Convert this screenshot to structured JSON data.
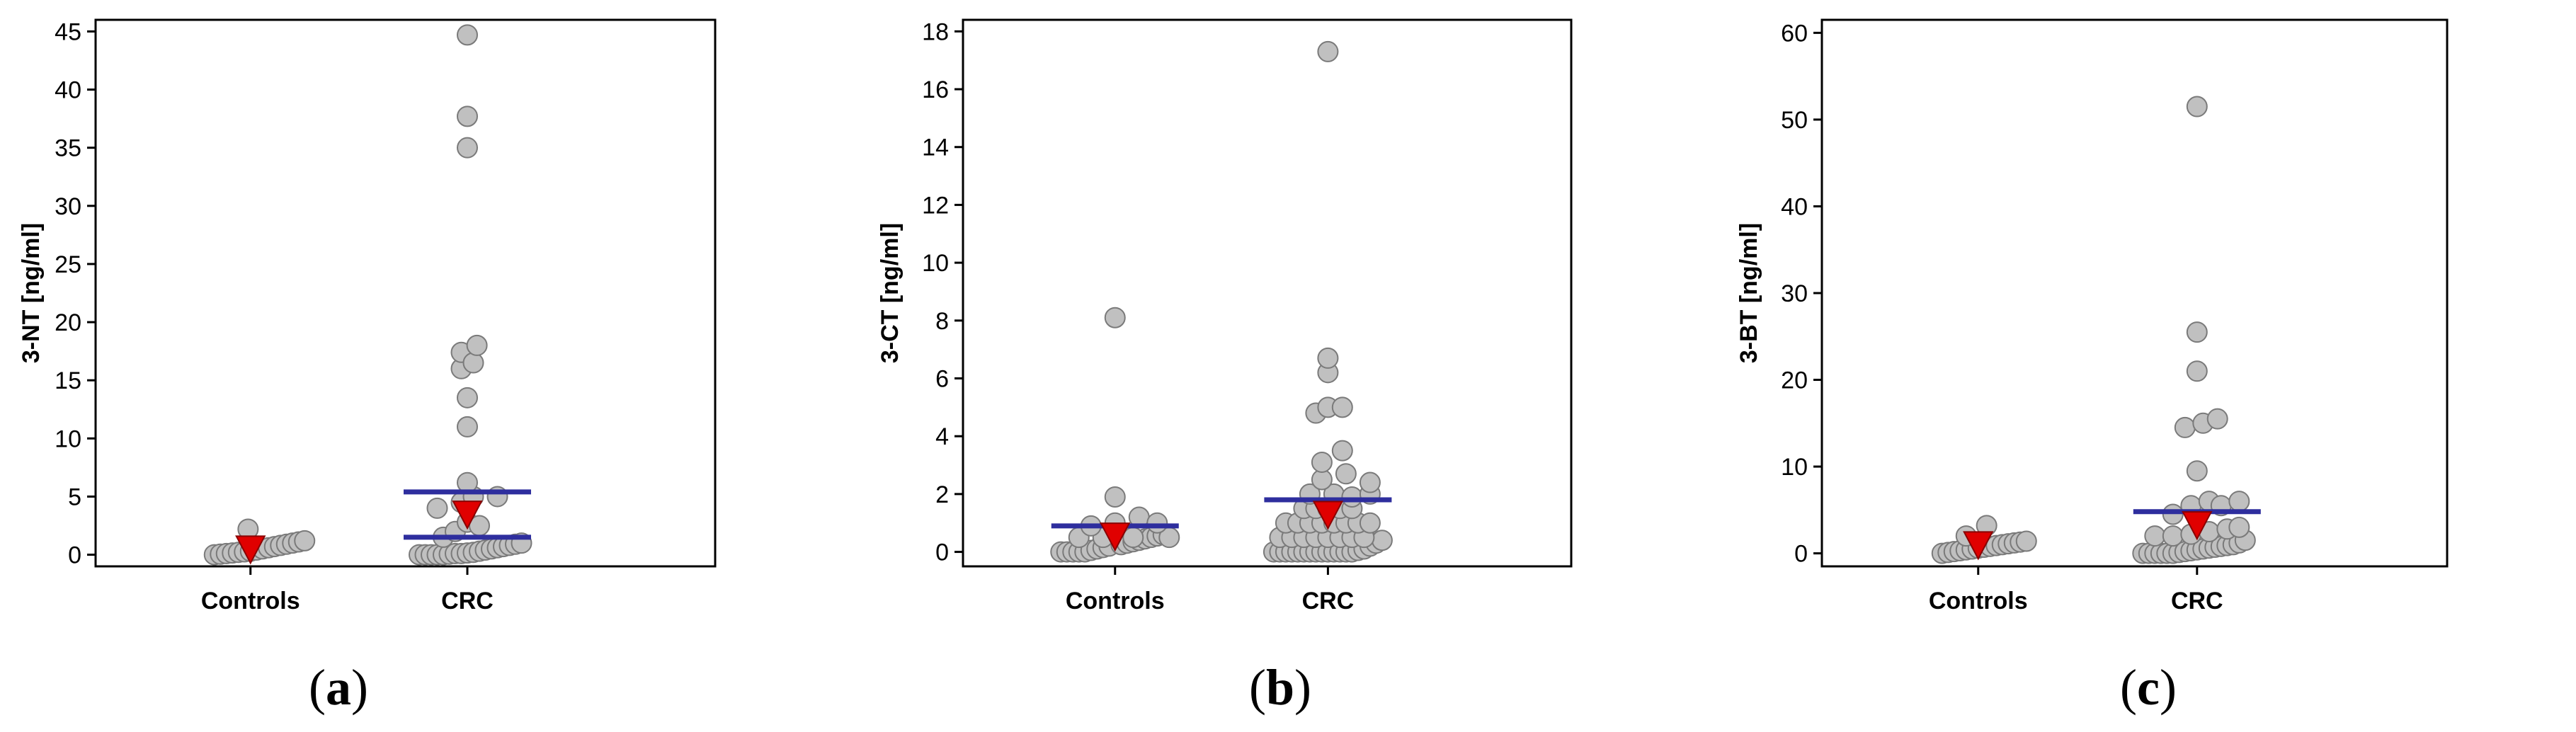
{
  "colors": {
    "point_fill": "#c0c0c0",
    "point_stroke": "#7a7a7a",
    "marker": "#e00000",
    "bar": "#2e2e9e",
    "axis": "#000000"
  },
  "captions": {
    "a": "a",
    "b": "b",
    "c": "c"
  },
  "chart_data": [
    {
      "type": "scatter",
      "id": "a",
      "ylabel": "3-NT [ng/ml]",
      "categories": [
        "Controls",
        "CRC"
      ],
      "ylim": [
        -1,
        46
      ],
      "yticks": [
        0,
        5,
        10,
        15,
        20,
        25,
        30,
        35,
        40,
        45
      ],
      "series": [
        {
          "name": "Controls",
          "cat": 0,
          "points": [
            [
              -0.3,
              0
            ],
            [
              -0.25,
              0.05
            ],
            [
              -0.2,
              0.1
            ],
            [
              -0.15,
              0.15
            ],
            [
              -0.1,
              0.2
            ],
            [
              -0.05,
              0.25
            ],
            [
              0.0,
              0.3
            ],
            [
              0.05,
              0.4
            ],
            [
              0.1,
              0.5
            ],
            [
              0.15,
              0.6
            ],
            [
              0.2,
              0.7
            ],
            [
              0.25,
              0.8
            ],
            [
              0.3,
              0.9
            ],
            [
              0.35,
              1.0
            ],
            [
              0.4,
              1.1
            ],
            [
              0.45,
              1.2
            ],
            [
              -0.02,
              2.2
            ]
          ]
        },
        {
          "name": "CRC",
          "cat": 1,
          "points": [
            [
              -0.4,
              0
            ],
            [
              -0.35,
              0
            ],
            [
              -0.3,
              0
            ],
            [
              -0.25,
              0
            ],
            [
              -0.2,
              0
            ],
            [
              -0.15,
              0.05
            ],
            [
              -0.1,
              0.1
            ],
            [
              -0.05,
              0.1
            ],
            [
              0.0,
              0.15
            ],
            [
              0.05,
              0.2
            ],
            [
              0.1,
              0.3
            ],
            [
              0.15,
              0.4
            ],
            [
              0.2,
              0.5
            ],
            [
              0.25,
              0.6
            ],
            [
              0.3,
              0.7
            ],
            [
              0.35,
              0.8
            ],
            [
              0.4,
              0.9
            ],
            [
              0.45,
              1.0
            ],
            [
              -0.2,
              1.5
            ],
            [
              -0.1,
              2.0
            ],
            [
              0.0,
              2.8
            ],
            [
              0.1,
              2.5
            ],
            [
              -0.25,
              4.0
            ],
            [
              -0.05,
              4.5
            ],
            [
              0.05,
              5.0
            ],
            [
              0.25,
              5.0
            ],
            [
              0.0,
              6.2
            ],
            [
              0.0,
              11.0
            ],
            [
              0.0,
              13.5
            ],
            [
              -0.05,
              16.0
            ],
            [
              -0.05,
              17.4
            ],
            [
              0.05,
              16.5
            ],
            [
              0.08,
              18.0
            ],
            [
              0.0,
              35.0
            ],
            [
              0.0,
              37.7
            ],
            [
              0.0,
              44.7
            ]
          ]
        }
      ],
      "median": [
        0.5,
        3.5
      ],
      "ci_bars": [
        {
          "cat": 1,
          "y": 5.4
        },
        {
          "cat": 1,
          "y": 1.5
        }
      ]
    },
    {
      "type": "scatter",
      "id": "b",
      "ylabel": "3-CT [ng/ml]",
      "categories": [
        "Controls",
        "CRC"
      ],
      "ylim": [
        -0.5,
        18.4
      ],
      "yticks": [
        0,
        2,
        4,
        6,
        8,
        10,
        12,
        14,
        16,
        18
      ],
      "series": [
        {
          "name": "Controls",
          "cat": 0,
          "points": [
            [
              -0.45,
              0
            ],
            [
              -0.4,
              0
            ],
            [
              -0.35,
              0
            ],
            [
              -0.3,
              0
            ],
            [
              -0.25,
              0
            ],
            [
              -0.2,
              0.05
            ],
            [
              -0.15,
              0.1
            ],
            [
              -0.1,
              0.15
            ],
            [
              -0.05,
              0.2
            ],
            [
              0.05,
              0.25
            ],
            [
              0.1,
              0.3
            ],
            [
              0.15,
              0.35
            ],
            [
              0.2,
              0.4
            ],
            [
              0.25,
              0.45
            ],
            [
              0.3,
              0.5
            ],
            [
              0.35,
              0.55
            ],
            [
              0.4,
              0.6
            ],
            [
              0.45,
              0.5
            ],
            [
              -0.3,
              0.5
            ],
            [
              -0.1,
              0.5
            ],
            [
              0.15,
              0.5
            ],
            [
              -0.2,
              0.9
            ],
            [
              0.0,
              1.0
            ],
            [
              0.2,
              1.2
            ],
            [
              0.35,
              1.0
            ],
            [
              0.0,
              1.9
            ],
            [
              0.0,
              8.1
            ]
          ]
        },
        {
          "name": "CRC",
          "cat": 1,
          "points": [
            [
              -0.45,
              0
            ],
            [
              -0.4,
              0
            ],
            [
              -0.35,
              0
            ],
            [
              -0.3,
              0
            ],
            [
              -0.25,
              0
            ],
            [
              -0.2,
              0
            ],
            [
              -0.15,
              0
            ],
            [
              -0.1,
              0
            ],
            [
              -0.05,
              0
            ],
            [
              0.0,
              0
            ],
            [
              0.05,
              0
            ],
            [
              0.1,
              0
            ],
            [
              0.15,
              0
            ],
            [
              0.2,
              0
            ],
            [
              0.25,
              0.05
            ],
            [
              0.3,
              0.1
            ],
            [
              0.35,
              0.2
            ],
            [
              0.4,
              0.3
            ],
            [
              0.45,
              0.4
            ],
            [
              -0.4,
              0.5
            ],
            [
              -0.3,
              0.5
            ],
            [
              -0.2,
              0.5
            ],
            [
              -0.1,
              0.5
            ],
            [
              0.0,
              0.5
            ],
            [
              0.1,
              0.5
            ],
            [
              0.2,
              0.5
            ],
            [
              0.3,
              0.5
            ],
            [
              -0.35,
              1.0
            ],
            [
              -0.25,
              1.0
            ],
            [
              -0.15,
              1.0
            ],
            [
              -0.05,
              1.0
            ],
            [
              0.05,
              1.0
            ],
            [
              0.15,
              1.0
            ],
            [
              0.25,
              1.0
            ],
            [
              0.35,
              1.0
            ],
            [
              -0.2,
              1.5
            ],
            [
              -0.1,
              1.5
            ],
            [
              0.0,
              1.5
            ],
            [
              0.1,
              1.5
            ],
            [
              0.2,
              1.5
            ],
            [
              -0.15,
              2.0
            ],
            [
              0.05,
              2.0
            ],
            [
              0.2,
              1.9
            ],
            [
              0.35,
              2.0
            ],
            [
              0.35,
              2.4
            ],
            [
              -0.05,
              2.5
            ],
            [
              0.15,
              2.7
            ],
            [
              -0.05,
              3.1
            ],
            [
              0.12,
              3.5
            ],
            [
              -0.1,
              4.8
            ],
            [
              0.0,
              5.0
            ],
            [
              0.12,
              5.0
            ],
            [
              0.0,
              6.2
            ],
            [
              0.0,
              6.7
            ],
            [
              0.0,
              17.3
            ]
          ]
        }
      ],
      "median": [
        0.55,
        1.3
      ],
      "ci_bars": [
        {
          "cat": 0,
          "y": 0.9
        },
        {
          "cat": 1,
          "y": 1.8
        }
      ]
    },
    {
      "type": "scatter",
      "id": "c",
      "ylabel": "3-BT [ng/ml]",
      "categories": [
        "Controls",
        "CRC"
      ],
      "ylim": [
        -1.5,
        61.5
      ],
      "yticks": [
        0,
        10,
        20,
        30,
        40,
        50,
        60
      ],
      "series": [
        {
          "name": "Controls",
          "cat": 0,
          "points": [
            [
              -0.3,
              0
            ],
            [
              -0.25,
              0.1
            ],
            [
              -0.2,
              0.2
            ],
            [
              -0.15,
              0.3
            ],
            [
              -0.1,
              0.4
            ],
            [
              -0.05,
              0.5
            ],
            [
              0.0,
              0.6
            ],
            [
              0.05,
              0.7
            ],
            [
              0.1,
              0.8
            ],
            [
              0.15,
              0.9
            ],
            [
              0.2,
              1.0
            ],
            [
              0.25,
              1.1
            ],
            [
              0.3,
              1.2
            ],
            [
              0.35,
              1.3
            ],
            [
              0.4,
              1.4
            ],
            [
              -0.1,
              2.0
            ],
            [
              0.07,
              3.2
            ]
          ]
        },
        {
          "name": "CRC",
          "cat": 1,
          "points": [
            [
              -0.45,
              0
            ],
            [
              -0.4,
              0
            ],
            [
              -0.35,
              0
            ],
            [
              -0.3,
              0
            ],
            [
              -0.25,
              0
            ],
            [
              -0.2,
              0
            ],
            [
              -0.15,
              0.1
            ],
            [
              -0.1,
              0.2
            ],
            [
              -0.05,
              0.3
            ],
            [
              0.0,
              0.4
            ],
            [
              0.05,
              0.5
            ],
            [
              0.1,
              0.6
            ],
            [
              0.15,
              0.7
            ],
            [
              0.2,
              0.8
            ],
            [
              0.25,
              0.9
            ],
            [
              0.3,
              1.0
            ],
            [
              0.35,
              1.2
            ],
            [
              0.4,
              1.5
            ],
            [
              -0.35,
              2.0
            ],
            [
              -0.2,
              2.0
            ],
            [
              -0.05,
              2.2
            ],
            [
              0.1,
              2.5
            ],
            [
              0.25,
              2.8
            ],
            [
              0.35,
              3.0
            ],
            [
              -0.2,
              4.5
            ],
            [
              -0.05,
              5.5
            ],
            [
              0.1,
              6.0
            ],
            [
              0.2,
              5.5
            ],
            [
              0.35,
              6.0
            ],
            [
              0.0,
              9.5
            ],
            [
              -0.1,
              14.5
            ],
            [
              0.05,
              15.0
            ],
            [
              0.17,
              15.5
            ],
            [
              0.0,
              21.0
            ],
            [
              0.0,
              25.5
            ],
            [
              0.0,
              51.5
            ]
          ]
        }
      ],
      "median": [
        1.0,
        3.3
      ],
      "ci_bars": [
        {
          "cat": 1,
          "y": 4.8
        }
      ]
    }
  ]
}
